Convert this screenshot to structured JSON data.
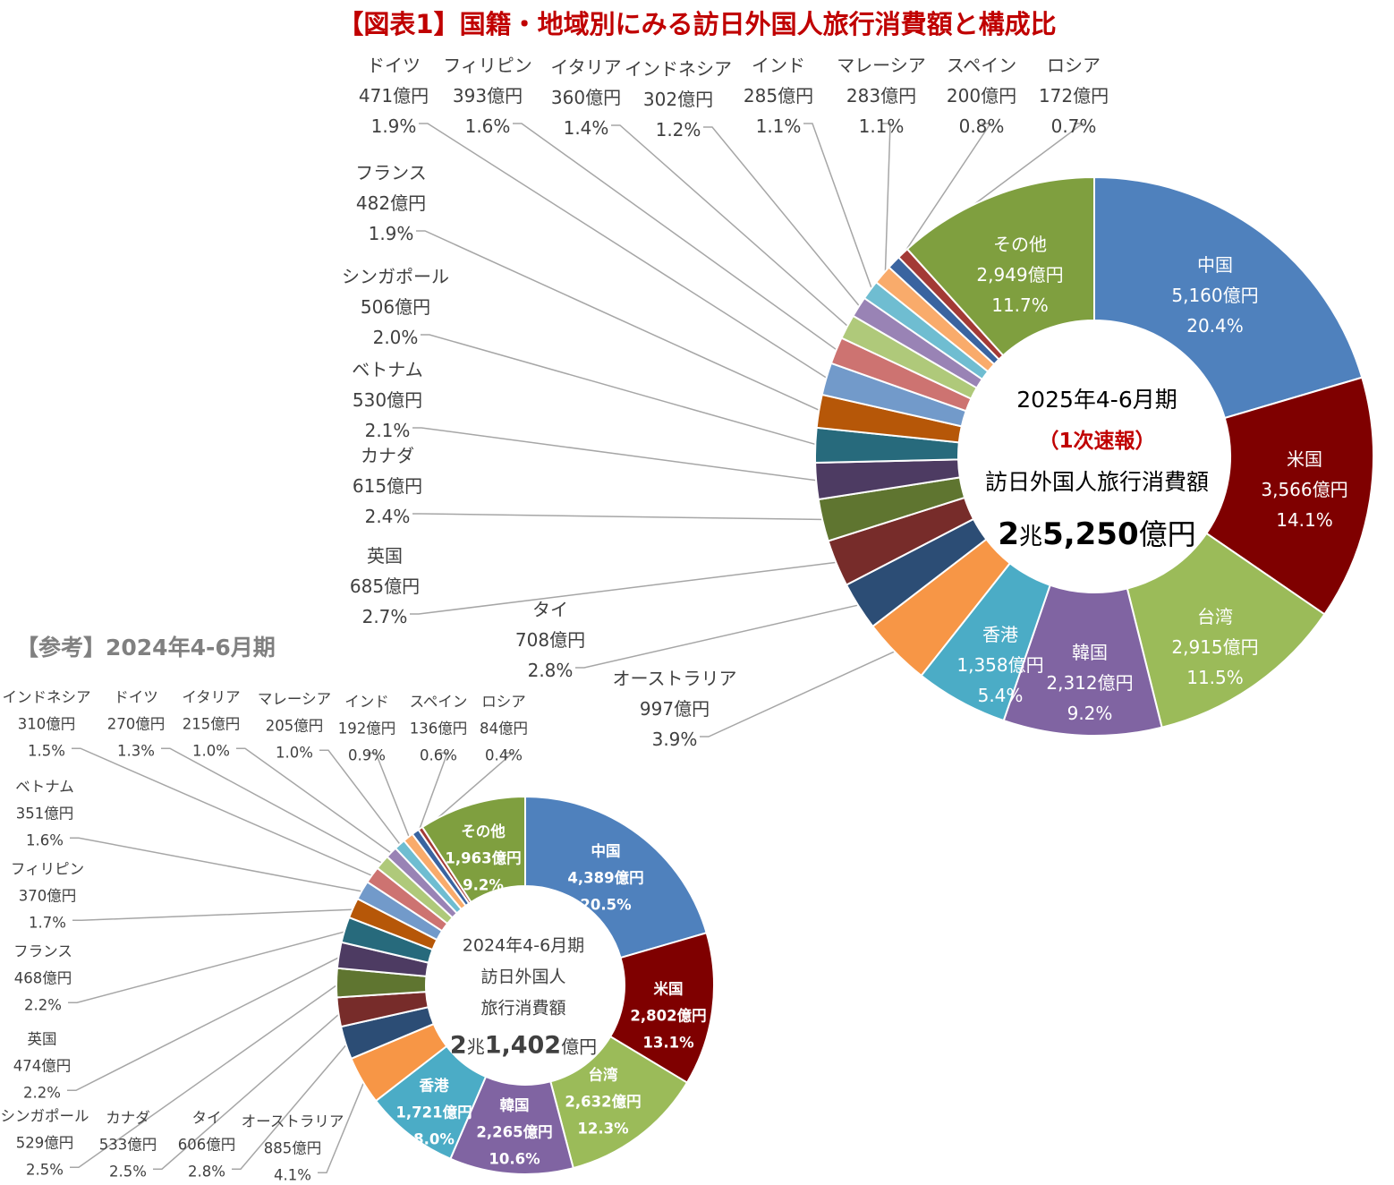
{
  "title": "【図表1】国籍・地域別にみる訪日外国人旅行消費額と構成比",
  "reference_label": "【参考】2024年4-6月期",
  "colors": [
    "#4F81BD",
    "#7F0000",
    "#9BBB59",
    "#8064A2",
    "#4BACC6",
    "#F79646",
    "#2C4D75",
    "#772C2A",
    "#5F7530",
    "#4D3B62",
    "#276A7C",
    "#B65708",
    "#729ACA",
    "#CD7371",
    "#AFC97A",
    "#9983B5",
    "#6FBDD1",
    "#F9AB6B",
    "#3A64A0",
    "#A33A36",
    "#7F9F3F"
  ],
  "chart_data": [
    {
      "type": "pie",
      "subtype": "donut",
      "period": "2025年4-6月期",
      "center_lines": [
        "2025年4-6月期",
        "（1次速報）",
        "訪日外国人旅行消費額"
      ],
      "total": {
        "a": "2",
        "b": "兆",
        "c": "5,250",
        "d": "億円"
      },
      "unit": "億円",
      "categories": [
        "中国",
        "米国",
        "台湾",
        "韓国",
        "香港",
        "オーストラリア",
        "タイ",
        "英国",
        "カナダ",
        "ベトナム",
        "シンガポール",
        "フランス",
        "ドイツ",
        "フィリピン",
        "イタリア",
        "インドネシア",
        "インド",
        "マレーシア",
        "スペイン",
        "ロシア",
        "その他"
      ],
      "values": [
        5160,
        3566,
        2915,
        2312,
        1358,
        997,
        708,
        685,
        615,
        530,
        506,
        482,
        471,
        393,
        360,
        302,
        285,
        283,
        200,
        172,
        2949
      ],
      "value_labels": [
        "5,160億円",
        "3,566億円",
        "2,915億円",
        "2,312億円",
        "1,358億円",
        "997億円",
        "708億円",
        "685億円",
        "615億円",
        "530億円",
        "506億円",
        "482億円",
        "471億円",
        "393億円",
        "360億円",
        "302億円",
        "285億円",
        "283億円",
        "200億円",
        "172億円",
        "2,949億円"
      ],
      "percent_labels": [
        "20.4%",
        "14.1%",
        "11.5%",
        "9.2%",
        "5.4%",
        "3.9%",
        "2.8%",
        "2.7%",
        "2.4%",
        "2.1%",
        "2.0%",
        "1.9%",
        "1.9%",
        "1.6%",
        "1.4%",
        "1.2%",
        "1.1%",
        "1.1%",
        "0.8%",
        "0.7%",
        "11.7%"
      ]
    },
    {
      "type": "pie",
      "subtype": "donut",
      "period": "2024年4-6月期",
      "center_lines": [
        "2024年4-6月期",
        "訪日外国人",
        "旅行消費額"
      ],
      "total": {
        "a": "2",
        "b": "兆",
        "c": "1,402",
        "d": "億円"
      },
      "unit": "億円",
      "categories": [
        "中国",
        "米国",
        "台湾",
        "韓国",
        "香港",
        "オーストラリア",
        "タイ",
        "カナダ",
        "シンガポール",
        "英国",
        "フランス",
        "フィリピン",
        "ベトナム",
        "インドネシア",
        "ドイツ",
        "イタリア",
        "マレーシア",
        "インド",
        "スペイン",
        "ロシア",
        "その他"
      ],
      "values": [
        4389,
        2802,
        2632,
        2265,
        1721,
        885,
        606,
        533,
        529,
        474,
        468,
        370,
        351,
        310,
        270,
        215,
        205,
        192,
        136,
        84,
        1963
      ],
      "value_labels": [
        "4,389億円",
        "2,802億円",
        "2,632億円",
        "2,265億円",
        "1,721億円",
        "885億円",
        "606億円",
        "533億円",
        "529億円",
        "474億円",
        "468億円",
        "370億円",
        "351億円",
        "310億円",
        "270億円",
        "215億円",
        "205億円",
        "192億円",
        "136億円",
        "84億円",
        "1,963億円"
      ],
      "percent_labels": [
        "20.5%",
        "13.1%",
        "12.3%",
        "10.6%",
        "8.0%",
        "4.1%",
        "2.8%",
        "2.5%",
        "2.5%",
        "2.2%",
        "2.2%",
        "1.7%",
        "1.6%",
        "1.5%",
        "1.3%",
        "1.0%",
        "1.0%",
        "0.9%",
        "0.6%",
        "0.4%",
        "9.2%"
      ]
    }
  ]
}
